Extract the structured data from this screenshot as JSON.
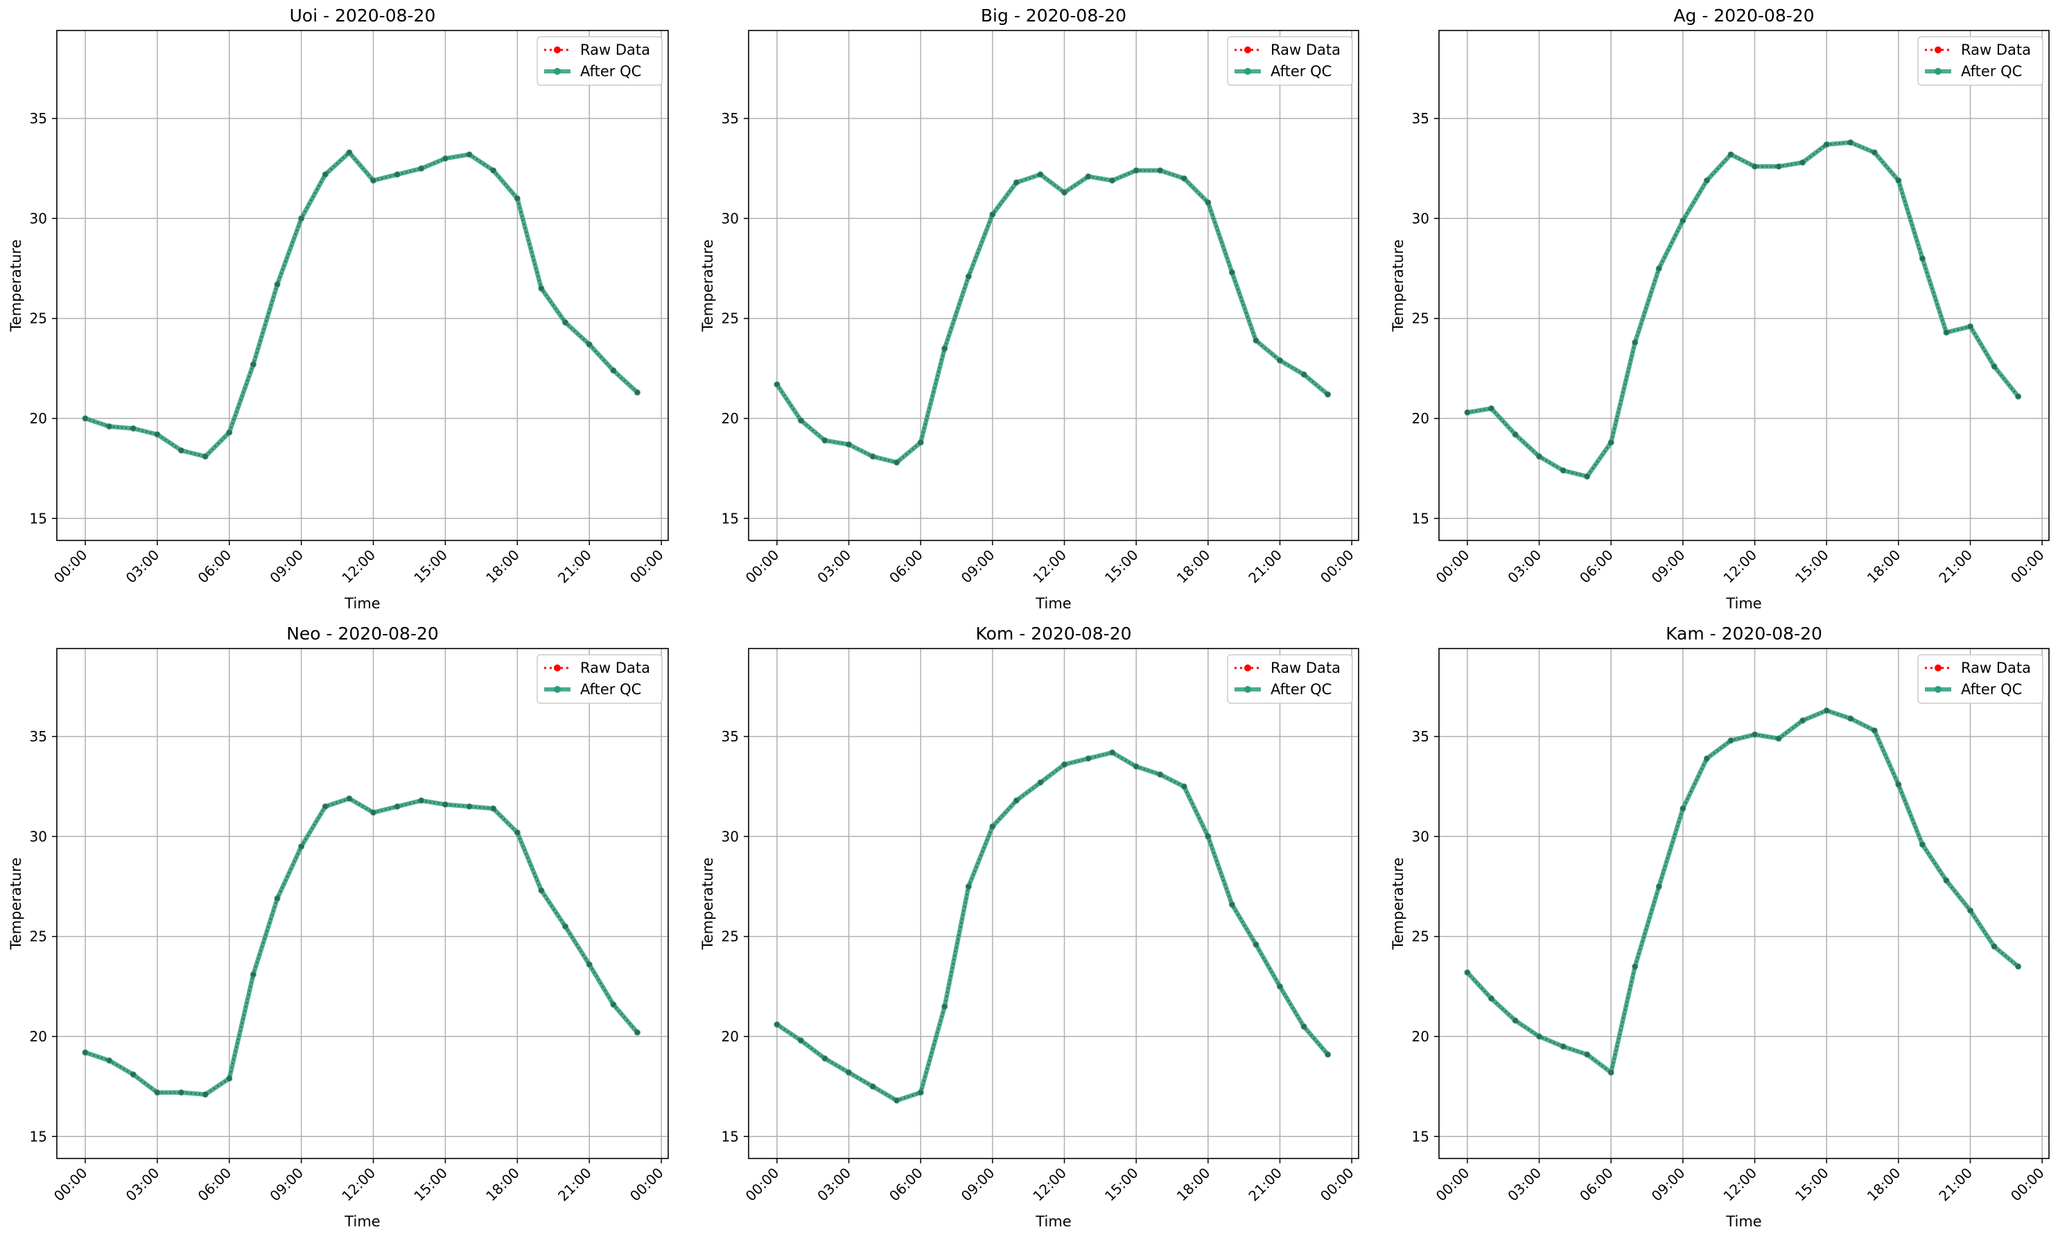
{
  "figure": {
    "colors": {
      "raw": "#ff0000",
      "qc": "#2a9d7c",
      "grid": "#b0b0b0",
      "axis": "#000000"
    }
  },
  "chart_data": [
    {
      "type": "line",
      "title": "Uoi - 2020-08-20",
      "xlabel": "Time",
      "ylabel": "Temperature",
      "x_ticks": [
        "00:00",
        "03:00",
        "06:00",
        "09:00",
        "12:00",
        "15:00",
        "18:00",
        "21:00",
        "00:00"
      ],
      "y_ticks": [
        15,
        20,
        25,
        30,
        35
      ],
      "ylim": [
        13.9,
        39.4
      ],
      "legend_position": "top-right",
      "grid": true,
      "x_hours": [
        0,
        1,
        2,
        3,
        4,
        5,
        6,
        7,
        8,
        9,
        10,
        11,
        12,
        13,
        14,
        15,
        16,
        17,
        18,
        19,
        20,
        21,
        22,
        23
      ],
      "series": [
        {
          "name": "Raw Data",
          "style": "dotted-marker",
          "values": [
            20.0,
            19.6,
            19.5,
            19.2,
            18.4,
            18.1,
            19.3,
            22.7,
            26.7,
            30.0,
            32.2,
            33.3,
            31.9,
            32.2,
            32.5,
            33.0,
            33.2,
            32.4,
            31.0,
            26.5,
            24.8,
            23.7,
            22.4,
            21.3
          ]
        },
        {
          "name": "After QC",
          "style": "solid-marker",
          "values": [
            20.0,
            19.6,
            19.5,
            19.2,
            18.4,
            18.1,
            19.3,
            22.7,
            26.7,
            30.0,
            32.2,
            33.3,
            31.9,
            32.2,
            32.5,
            33.0,
            33.2,
            32.4,
            31.0,
            26.5,
            24.8,
            23.7,
            22.4,
            21.3
          ]
        }
      ]
    },
    {
      "type": "line",
      "title": "Big - 2020-08-20",
      "xlabel": "Time",
      "ylabel": "Temperature",
      "x_ticks": [
        "00:00",
        "03:00",
        "06:00",
        "09:00",
        "12:00",
        "15:00",
        "18:00",
        "21:00",
        "00:00"
      ],
      "y_ticks": [
        15,
        20,
        25,
        30,
        35
      ],
      "ylim": [
        13.9,
        39.4
      ],
      "legend_position": "top-right",
      "grid": true,
      "x_hours": [
        0,
        1,
        2,
        3,
        4,
        5,
        6,
        7,
        8,
        9,
        10,
        11,
        12,
        13,
        14,
        15,
        16,
        17,
        18,
        19,
        20,
        21,
        22,
        23
      ],
      "series": [
        {
          "name": "Raw Data",
          "style": "dotted-marker",
          "values": [
            21.7,
            19.9,
            18.9,
            18.7,
            18.1,
            17.8,
            18.8,
            23.5,
            27.1,
            30.2,
            31.8,
            32.2,
            31.3,
            32.1,
            31.9,
            32.4,
            32.4,
            32.0,
            30.8,
            27.3,
            23.9,
            22.9,
            22.2,
            21.2
          ]
        },
        {
          "name": "After QC",
          "style": "solid-marker",
          "values": [
            21.7,
            19.9,
            18.9,
            18.7,
            18.1,
            17.8,
            18.8,
            23.5,
            27.1,
            30.2,
            31.8,
            32.2,
            31.3,
            32.1,
            31.9,
            32.4,
            32.4,
            32.0,
            30.8,
            27.3,
            23.9,
            22.9,
            22.2,
            21.2
          ]
        }
      ]
    },
    {
      "type": "line",
      "title": "Ag - 2020-08-20",
      "xlabel": "Time",
      "ylabel": "Temperature",
      "x_ticks": [
        "00:00",
        "03:00",
        "06:00",
        "09:00",
        "12:00",
        "15:00",
        "18:00",
        "21:00",
        "00:00"
      ],
      "y_ticks": [
        15,
        20,
        25,
        30,
        35
      ],
      "ylim": [
        13.9,
        39.4
      ],
      "legend_position": "top-right",
      "grid": true,
      "x_hours": [
        0,
        1,
        2,
        3,
        4,
        5,
        6,
        7,
        8,
        9,
        10,
        11,
        12,
        13,
        14,
        15,
        16,
        17,
        18,
        19,
        20,
        21,
        22,
        23
      ],
      "series": [
        {
          "name": "Raw Data",
          "style": "dotted-marker",
          "values": [
            20.3,
            20.5,
            19.2,
            18.1,
            17.4,
            17.1,
            18.8,
            23.8,
            27.5,
            29.9,
            31.9,
            33.2,
            32.6,
            32.6,
            32.8,
            33.7,
            33.8,
            33.3,
            31.9,
            28.0,
            24.3,
            24.6,
            22.6,
            21.1
          ]
        },
        {
          "name": "After QC",
          "style": "solid-marker",
          "values": [
            20.3,
            20.5,
            19.2,
            18.1,
            17.4,
            17.1,
            18.8,
            23.8,
            27.5,
            29.9,
            31.9,
            33.2,
            32.6,
            32.6,
            32.8,
            33.7,
            33.8,
            33.3,
            31.9,
            28.0,
            24.3,
            24.6,
            22.6,
            21.1
          ]
        }
      ]
    },
    {
      "type": "line",
      "title": "Neo - 2020-08-20",
      "xlabel": "Time",
      "ylabel": "Temperature",
      "x_ticks": [
        "00:00",
        "03:00",
        "06:00",
        "09:00",
        "12:00",
        "15:00",
        "18:00",
        "21:00",
        "00:00"
      ],
      "y_ticks": [
        15,
        20,
        25,
        30,
        35
      ],
      "ylim": [
        13.9,
        39.4
      ],
      "legend_position": "top-right",
      "grid": true,
      "x_hours": [
        0,
        1,
        2,
        3,
        4,
        5,
        6,
        7,
        8,
        9,
        10,
        11,
        12,
        13,
        14,
        15,
        16,
        17,
        18,
        19,
        20,
        21,
        22,
        23
      ],
      "series": [
        {
          "name": "Raw Data",
          "style": "dotted-marker",
          "values": [
            19.2,
            18.8,
            18.1,
            17.2,
            17.2,
            17.1,
            17.9,
            23.1,
            26.9,
            29.5,
            31.5,
            31.9,
            31.2,
            31.5,
            31.8,
            31.6,
            31.5,
            31.4,
            30.2,
            27.3,
            25.5,
            23.6,
            21.6,
            20.2
          ]
        },
        {
          "name": "After QC",
          "style": "solid-marker",
          "values": [
            19.2,
            18.8,
            18.1,
            17.2,
            17.2,
            17.1,
            17.9,
            23.1,
            26.9,
            29.5,
            31.5,
            31.9,
            31.2,
            31.5,
            31.8,
            31.6,
            31.5,
            31.4,
            30.2,
            27.3,
            25.5,
            23.6,
            21.6,
            20.2
          ]
        }
      ]
    },
    {
      "type": "line",
      "title": "Kom - 2020-08-20",
      "xlabel": "Time",
      "ylabel": "Temperature",
      "x_ticks": [
        "00:00",
        "03:00",
        "06:00",
        "09:00",
        "12:00",
        "15:00",
        "18:00",
        "21:00",
        "00:00"
      ],
      "y_ticks": [
        15,
        20,
        25,
        30,
        35
      ],
      "ylim": [
        13.9,
        39.4
      ],
      "legend_position": "top-right",
      "grid": true,
      "x_hours": [
        0,
        1,
        2,
        3,
        4,
        5,
        6,
        7,
        8,
        9,
        10,
        11,
        12,
        13,
        14,
        15,
        16,
        17,
        18,
        19,
        20,
        21,
        22,
        23
      ],
      "series": [
        {
          "name": "Raw Data",
          "style": "dotted-marker",
          "values": [
            20.6,
            19.8,
            18.9,
            18.2,
            17.5,
            16.8,
            17.2,
            21.5,
            27.5,
            30.5,
            31.8,
            32.7,
            33.6,
            33.9,
            34.2,
            33.5,
            33.1,
            32.5,
            30.0,
            26.6,
            24.6,
            22.5,
            20.5,
            19.1
          ]
        },
        {
          "name": "After QC",
          "style": "solid-marker",
          "values": [
            20.6,
            19.8,
            18.9,
            18.2,
            17.5,
            16.8,
            17.2,
            21.5,
            27.5,
            30.5,
            31.8,
            32.7,
            33.6,
            33.9,
            34.2,
            33.5,
            33.1,
            32.5,
            30.0,
            26.6,
            24.6,
            22.5,
            20.5,
            19.1
          ]
        }
      ]
    },
    {
      "type": "line",
      "title": "Kam - 2020-08-20",
      "xlabel": "Time",
      "ylabel": "Temperature",
      "x_ticks": [
        "00:00",
        "03:00",
        "06:00",
        "09:00",
        "12:00",
        "15:00",
        "18:00",
        "21:00",
        "00:00"
      ],
      "y_ticks": [
        15,
        20,
        25,
        30,
        35
      ],
      "ylim": [
        13.9,
        39.4
      ],
      "legend_position": "top-right",
      "grid": true,
      "x_hours": [
        0,
        1,
        2,
        3,
        4,
        5,
        6,
        7,
        8,
        9,
        10,
        11,
        12,
        13,
        14,
        15,
        16,
        17,
        18,
        19,
        20,
        21,
        22,
        23
      ],
      "series": [
        {
          "name": "Raw Data",
          "style": "dotted-marker",
          "values": [
            23.2,
            21.9,
            20.8,
            20.0,
            19.5,
            19.1,
            18.2,
            23.5,
            27.5,
            31.4,
            33.9,
            34.8,
            35.1,
            34.9,
            35.8,
            36.3,
            35.9,
            35.3,
            32.6,
            29.6,
            27.8,
            26.3,
            24.5,
            23.5
          ]
        },
        {
          "name": "After QC",
          "style": "solid-marker",
          "values": [
            23.2,
            21.9,
            20.8,
            20.0,
            19.5,
            19.1,
            18.2,
            23.5,
            27.5,
            31.4,
            33.9,
            34.8,
            35.1,
            34.9,
            35.8,
            36.3,
            35.9,
            35.3,
            32.6,
            29.6,
            27.8,
            26.3,
            24.5,
            23.5
          ]
        }
      ]
    }
  ]
}
